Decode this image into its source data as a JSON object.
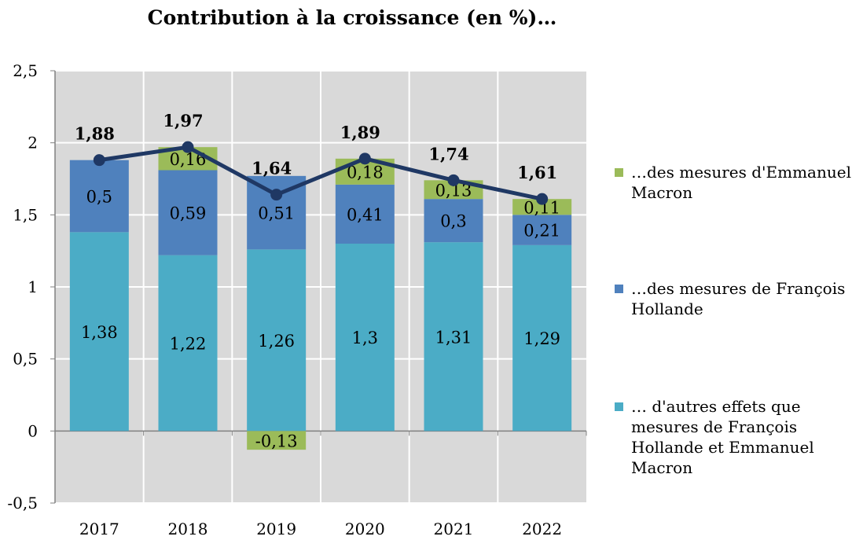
{
  "chart_data": {
    "type": "bar",
    "title": "Contribution à la croissance (en %)…",
    "categories": [
      "2017",
      "2018",
      "2019",
      "2020",
      "2021",
      "2022"
    ],
    "series": [
      {
        "name": "… d'autres effets que mesures de François Hollande et Emmanuel Macron",
        "values": [
          1.38,
          1.22,
          1.26,
          1.3,
          1.31,
          1.29
        ],
        "labels": [
          "1,38",
          "1,22",
          "1,26",
          "1,3",
          "1,31",
          "1,29"
        ],
        "color": "#4bacc6"
      },
      {
        "name": "…des mesures de François Hollande",
        "values": [
          0.5,
          0.59,
          0.51,
          0.41,
          0.3,
          0.21
        ],
        "labels": [
          "0,5",
          "0,59",
          "0,51",
          "0,41",
          "0,3",
          "0,21"
        ],
        "color": "#4f81bd"
      },
      {
        "name": "…des mesures d'Emmanuel Macron",
        "values": [
          0,
          0.16,
          -0.13,
          0.18,
          0.13,
          0.11
        ],
        "labels": [
          "",
          "0,16",
          "-0,13",
          "0,18",
          "0,13",
          "0,11"
        ],
        "color": "#9bbb59"
      }
    ],
    "total": {
      "type": "line",
      "values": [
        1.88,
        1.97,
        1.64,
        1.89,
        1.74,
        1.61
      ],
      "labels": [
        "1,88",
        "1,97",
        "1,64",
        "1,89",
        "1,74",
        "1,61"
      ],
      "color": "#1f3864"
    },
    "stacked": true,
    "ylim": [
      -0.5,
      2.5
    ],
    "yticks": [
      -0.5,
      0,
      0.5,
      1,
      1.5,
      2,
      2.5
    ],
    "ytick_labels": [
      "-0,5",
      "0",
      "0,5",
      "1",
      "1,5",
      "2",
      "2,5"
    ],
    "grid": true,
    "legend_position": "right",
    "plot_background": "#d9d9d9"
  }
}
